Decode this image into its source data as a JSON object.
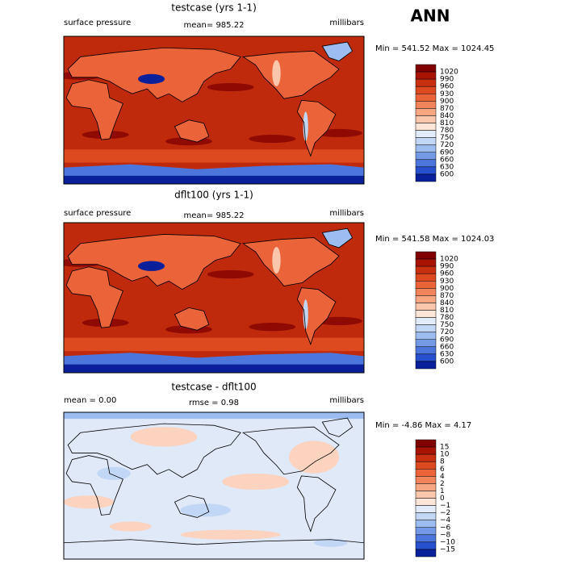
{
  "title": "ANN",
  "panels": [
    {
      "title": "testcase (yrs 1-1)",
      "left_label": "surface pressure",
      "center_label": "mean= 985.22",
      "right_label": "millibars",
      "min_max": "Min = 541.52 Max = 1024.45",
      "colorbar": {
        "labels": [
          "1020",
          "990",
          "960",
          "930",
          "900",
          "870",
          "840",
          "810",
          "780",
          "750",
          "720",
          "690",
          "660",
          "630",
          "600"
        ],
        "colors": [
          "#800000",
          "#a91306",
          "#c8300f",
          "#de4a20",
          "#ea6339",
          "#f2845c",
          "#f7a682",
          "#fbc7ac",
          "#fde6d8",
          "#e3ecfa",
          "#c2d6f5",
          "#9dbcef",
          "#7499e6",
          "#4d76dc",
          "#2750cf",
          "#0a1f9a"
        ]
      }
    },
    {
      "title": "dflt100 (yrs 1-1)",
      "left_label": "surface pressure",
      "center_label": "mean= 985.22",
      "right_label": "millibars",
      "min_max": "Min = 541.58 Max = 1024.03",
      "colorbar": {
        "labels": [
          "1020",
          "990",
          "960",
          "930",
          "900",
          "870",
          "840",
          "810",
          "780",
          "750",
          "720",
          "690",
          "660",
          "630",
          "600"
        ],
        "colors": [
          "#800000",
          "#a91306",
          "#c8300f",
          "#de4a20",
          "#ea6339",
          "#f2845c",
          "#f7a682",
          "#fbc7ac",
          "#fde6d8",
          "#e3ecfa",
          "#c2d6f5",
          "#9dbcef",
          "#7499e6",
          "#4d76dc",
          "#2750cf",
          "#0a1f9a"
        ]
      }
    },
    {
      "title": "testcase - dflt100",
      "left_label": "mean =    0.00",
      "center_label": "rmse =   0.98",
      "right_label": "millibars",
      "min_max": "Min =  -4.86 Max =    4.17",
      "colorbar": {
        "labels": [
          "15",
          "10",
          "8",
          "6",
          "4",
          "2",
          "1",
          "0",
          "−1",
          "−2",
          "−4",
          "−6",
          "−8",
          "−10",
          "−15"
        ],
        "colors": [
          "#800000",
          "#a91306",
          "#c8300f",
          "#de4a20",
          "#ea6339",
          "#f2845c",
          "#f7a682",
          "#fbc7ac",
          "#fde6d8",
          "#e3ecfa",
          "#c2d6f5",
          "#9dbcef",
          "#7499e6",
          "#4d76dc",
          "#2750cf",
          "#0a1f9a"
        ]
      }
    }
  ]
}
